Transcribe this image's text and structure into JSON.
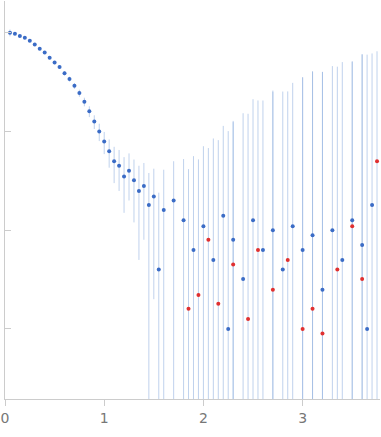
{
  "chart_data": {
    "type": "scatter",
    "log": "y",
    "grid": false,
    "tick_labels": "x",
    "marker": "circle",
    "xlim": [
      0,
      3.78
    ],
    "xticks": [
      0,
      1,
      2,
      3
    ],
    "ylim": [
      0.000195,
      2.1
    ],
    "yticks": [
      1,
      0.1,
      0.01,
      0.001
    ],
    "series": [
      {
        "color": "#3b6cc6",
        "x": [
          0.05,
          0.1,
          0.15,
          0.2,
          0.25,
          0.3,
          0.35,
          0.4,
          0.45,
          0.5,
          0.55,
          0.6,
          0.65,
          0.7,
          0.75,
          0.8,
          0.85,
          0.9,
          0.95,
          1.0,
          1.05,
          1.1,
          1.15,
          1.2,
          1.25,
          1.3,
          1.35,
          1.4,
          1.45,
          1.5,
          1.55,
          1.6,
          1.7,
          1.8,
          1.9,
          2.0,
          2.1,
          2.2,
          2.25,
          2.3,
          2.4,
          2.5,
          2.6,
          2.7,
          2.8,
          2.9,
          3.0,
          3.1,
          3.2,
          3.3,
          3.4,
          3.5,
          3.6,
          3.65,
          3.7
        ],
        "values": [
          1.0,
          0.98,
          0.93,
          0.89,
          0.83,
          0.76,
          0.69,
          0.63,
          0.56,
          0.5,
          0.45,
          0.39,
          0.34,
          0.29,
          0.245,
          0.2,
          0.16,
          0.126,
          0.1,
          0.079,
          0.063,
          0.05,
          0.045,
          0.035,
          0.04,
          0.032,
          0.025,
          0.028,
          0.018,
          0.022,
          0.004,
          0.016,
          0.02,
          0.0126,
          0.0063,
          0.011,
          0.005,
          0.014,
          0.001,
          0.008,
          0.0032,
          0.0126,
          0.0063,
          0.01,
          0.004,
          0.011,
          0.0063,
          0.0089,
          0.0025,
          0.01,
          0.005,
          0.0126,
          0.0071,
          0.001,
          0.018
        ],
        "error": [
          0.08,
          0.02,
          0.02,
          0.02,
          0.02,
          0.02,
          0.02,
          0.02,
          0.02,
          0.02,
          0.02,
          0.02,
          0.02,
          0.02,
          0.02,
          0.02,
          0.02,
          0.02,
          0.02,
          0.02,
          0.02,
          0.02,
          0.02,
          0.02,
          0.02,
          0.02,
          0.02,
          0.02,
          0.02,
          0.02,
          0.02,
          0.025,
          0.03,
          0.04,
          0.05,
          0.06,
          0.08,
          0.1,
          0.1,
          0.12,
          0.15,
          0.2,
          0.2,
          0.25,
          0.25,
          0.3,
          0.35,
          0.4,
          0.4,
          0.45,
          0.5,
          0.5,
          0.6,
          0.6,
          0.6
        ]
      },
      {
        "color": "#e03030",
        "x": [
          1.85,
          1.95,
          2.05,
          2.15,
          2.3,
          2.45,
          2.55,
          2.7,
          2.85,
          3.0,
          3.1,
          3.2,
          3.35,
          3.5,
          3.6,
          3.75
        ],
        "values": [
          0.0016,
          0.0022,
          0.008,
          0.0018,
          0.0045,
          0.00126,
          0.0063,
          0.0025,
          0.005,
          0.001,
          0.0016,
          0.0009,
          0.004,
          0.011,
          0.0032,
          0.05
        ],
        "error": [
          0.04,
          0.05,
          0.06,
          0.08,
          0.12,
          0.15,
          0.2,
          0.25,
          0.25,
          0.35,
          0.4,
          0.4,
          0.45,
          0.5,
          0.6,
          0.6
        ]
      }
    ]
  }
}
